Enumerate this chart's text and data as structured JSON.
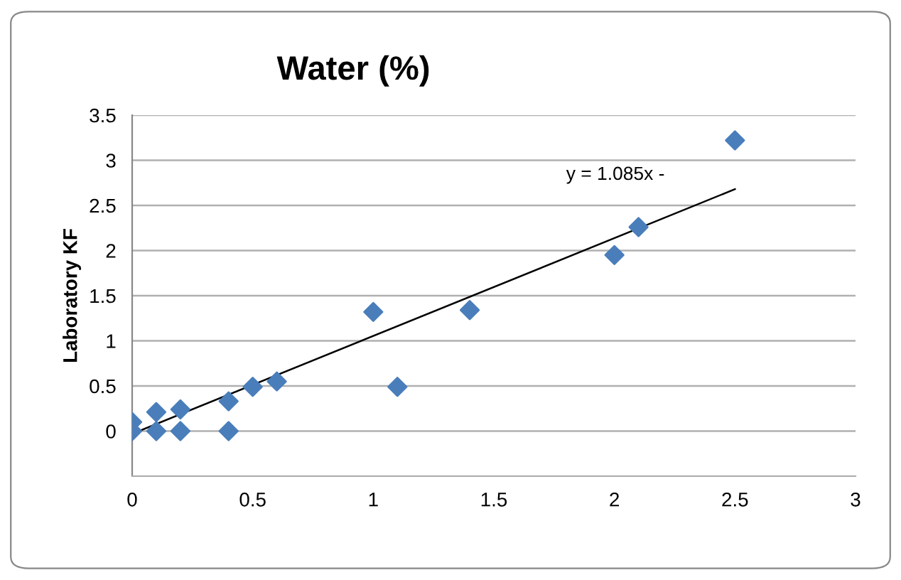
{
  "chart_data": {
    "type": "scatter",
    "title": "Water (%)",
    "ylabel": "Laboratory KF",
    "series": [
      {
        "color": "#4a7ebb",
        "marker": "diamond",
        "x": [
          0,
          0,
          0.1,
          0.1,
          0.2,
          0.2,
          0.4,
          0.4,
          0.5,
          0.6,
          1.0,
          1.1,
          1.4,
          2.0,
          2.1,
          2.5
        ],
        "values": [
          0.1,
          0,
          0.21,
          0,
          0.24,
          0,
          0.33,
          0,
          0.49,
          0.55,
          1.32,
          0.49,
          1.34,
          1.95,
          2.26,
          3.22
        ]
      },
      {
        "type": "line",
        "color": "#000000",
        "marker": "none",
        "line_style": "solid",
        "x": [
          0,
          2.5
        ],
        "values": [
          -0.03,
          2.68
        ]
      }
    ],
    "annotations": [
      "y = 1.085x -"
    ],
    "xlim": [
      0,
      3
    ],
    "xticks": [
      0,
      0.5,
      1,
      1.5,
      2,
      2.5,
      3
    ],
    "ylim": [
      -0.5,
      3.5
    ],
    "yticks": [
      {
        "value": -0.5,
        "label": null
      },
      0,
      0.5,
      1,
      1.5,
      2,
      2.5,
      3,
      3.5
    ],
    "grid": "y",
    "legend": false
  }
}
